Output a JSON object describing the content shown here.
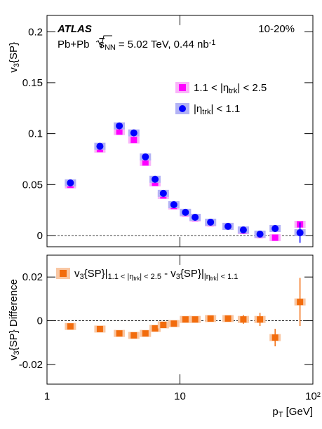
{
  "chart_data": [
    {
      "type": "scatter",
      "experiment": "ATLAS",
      "centrality": "10-20%",
      "energy_label": {
        "prefix": "Pb+Pb",
        "sqrt": "s",
        "sub": "NN",
        "rest": "= 5.02 TeV, 0.44 nb",
        "sup": "-1"
      },
      "y_label": [
        "v",
        "3",
        "{SP}"
      ],
      "x": [
        1.5,
        2.5,
        3.5,
        4.5,
        5.5,
        6.5,
        7.5,
        9,
        11,
        13,
        17,
        23,
        30,
        40,
        52,
        80
      ],
      "xlim": [
        1,
        100
      ],
      "xscale": "log",
      "xticks": [
        1,
        10,
        {
          "value": 100,
          "label": "10²"
        }
      ],
      "ylim": [
        -0.011,
        0.216
      ],
      "yticks": [
        0,
        0.05,
        0.1,
        0.15,
        0.2
      ],
      "series": [
        {
          "name": [
            "1.1 < |η",
            "trk",
            "| < 2.5"
          ],
          "color": "#ff00ff",
          "band_color": "#f9b4f9",
          "marker": "square",
          "values": [
            0.0497,
            0.0848,
            0.102,
            0.0938,
            0.0717,
            0.0517,
            0.0393,
            0.029,
            0.0221,
            0.0172,
            0.0124,
            0.009,
            0.0048,
            0.0007,
            -0.0021,
            0.011
          ]
        },
        {
          "name": [
            "|η",
            "trk",
            "| < 1.1"
          ],
          "color": "#0000ff",
          "band_color": "#b3b3f5",
          "marker": "circle",
          "values": [
            0.0517,
            0.0876,
            0.1076,
            0.1007,
            0.0772,
            0.0552,
            0.0414,
            0.0303,
            0.0228,
            0.0179,
            0.0131,
            0.009,
            0.0055,
            0.0014,
            0.0069,
            0.0028
          ],
          "errors": [
            0,
            0,
            0,
            0,
            0,
            0,
            0,
            0,
            0,
            0,
            0,
            0,
            0,
            0,
            0,
            0.01
          ]
        }
      ]
    },
    {
      "type": "scatter",
      "y_label": [
        "v",
        "3",
        "{SP} Difference"
      ],
      "x_label": [
        "p",
        "T",
        " [GeV]"
      ],
      "x": [
        1.5,
        2.5,
        3.5,
        4.5,
        5.5,
        6.5,
        7.5,
        9,
        11,
        13,
        17,
        23,
        30,
        40,
        52,
        80
      ],
      "xlim": [
        1,
        100
      ],
      "xscale": "log",
      "xticks": [
        1,
        10,
        {
          "value": 100,
          "label": "10²"
        }
      ],
      "ylim": [
        -0.029,
        0.03
      ],
      "yticks": [
        -0.02,
        0,
        0.02
      ],
      "series": [
        {
          "name": [
            "v",
            "3",
            "{SP}|",
            "1.1 < |η",
            "trk",
            "| < 2.5",
            " - v",
            "3",
            "{SP}|",
            "|η",
            "trk",
            "| < 1.1"
          ],
          "color": "#f26c0d",
          "band_color": "#f9c7a3",
          "marker": "square",
          "values": [
            -0.0026,
            -0.0038,
            -0.0058,
            -0.0067,
            -0.0058,
            -0.0035,
            -0.0019,
            -0.0013,
            0.0006,
            0.0006,
            0.001,
            0.001,
            0.0006,
            0.0006,
            -0.0077,
            0.0086
          ],
          "errors": [
            0,
            0,
            0,
            0,
            0,
            0,
            0,
            0,
            0,
            0,
            0,
            0,
            0.002,
            0.003,
            0.004,
            0.011
          ]
        }
      ]
    }
  ]
}
